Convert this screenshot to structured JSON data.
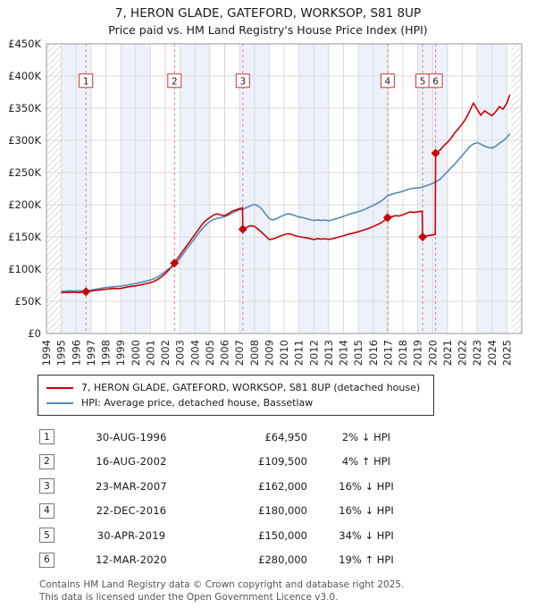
{
  "title": "7, HERON GLADE, GATEFORD, WORKSOP, S81 8UP",
  "subtitle": "Price paid vs. HM Land Registry's House Price Index (HPI)",
  "chart_data": {
    "type": "line",
    "x_min": 1994,
    "x_max": 2026,
    "ylim": [
      0,
      450000
    ],
    "y_tick_step": 50000,
    "y_ticks": [
      "£0",
      "£50K",
      "£100K",
      "£150K",
      "£200K",
      "£250K",
      "£300K",
      "£350K",
      "£400K",
      "£450K"
    ],
    "x_ticks": [
      1994,
      1995,
      1996,
      1997,
      1998,
      1999,
      2000,
      2001,
      2002,
      2003,
      2004,
      2005,
      2006,
      2007,
      2008,
      2009,
      2010,
      2011,
      2012,
      2013,
      2014,
      2015,
      2016,
      2017,
      2018,
      2019,
      2020,
      2021,
      2022,
      2023,
      2024,
      2025
    ],
    "grid": true,
    "legend_position": "below",
    "band_color": "#edf2fa",
    "grid_color": "#d9d9d9",
    "sale_line_color": "#e87c7c",
    "marker_color": "#cc0000",
    "box_stroke": "#cc3333",
    "label_y": 392000,
    "bands": [
      [
        1995,
        1997
      ],
      [
        1999,
        2001
      ],
      [
        2003,
        2005
      ],
      [
        2007,
        2009
      ],
      [
        2011,
        2013
      ],
      [
        2015,
        2017
      ],
      [
        2019,
        2021
      ],
      [
        2023,
        2025
      ]
    ],
    "hatch_regions": [
      [
        1994,
        1995
      ],
      [
        2025.3,
        2026
      ]
    ],
    "series": [
      {
        "name": "7, HERON GLADE, GATEFORD, WORKSOP, S81 8UP (detached house)",
        "color": "#cc0000",
        "width": 1.6,
        "points": [
          [
            1995,
            63500
          ],
          [
            1995.25,
            64200
          ],
          [
            1995.5,
            63800
          ],
          [
            1995.75,
            64300
          ],
          [
            1996,
            64000
          ],
          [
            1996.25,
            63600
          ],
          [
            1996.5,
            64400
          ],
          [
            1996.66,
            64950
          ],
          [
            1997,
            66000
          ],
          [
            1997.25,
            67000
          ],
          [
            1997.5,
            67500
          ],
          [
            1997.75,
            68200
          ],
          [
            1998,
            68800
          ],
          [
            1998.25,
            69500
          ],
          [
            1998.5,
            70000
          ],
          [
            1998.75,
            69700
          ],
          [
            1999,
            70000
          ],
          [
            1999.25,
            71200
          ],
          [
            1999.5,
            72500
          ],
          [
            1999.75,
            73200
          ],
          [
            2000,
            74000
          ],
          [
            2000.25,
            75200
          ],
          [
            2000.5,
            76200
          ],
          [
            2000.75,
            77600
          ],
          [
            2001,
            79000
          ],
          [
            2001.25,
            81000
          ],
          [
            2001.5,
            84000
          ],
          [
            2001.75,
            88000
          ],
          [
            2002,
            93000
          ],
          [
            2002.25,
            99000
          ],
          [
            2002.62,
            109500
          ],
          [
            2003,
            122000
          ],
          [
            2003.25,
            130000
          ],
          [
            2003.5,
            138000
          ],
          [
            2003.75,
            146000
          ],
          [
            2004,
            154000
          ],
          [
            2004.25,
            162000
          ],
          [
            2004.5,
            170000
          ],
          [
            2004.75,
            176000
          ],
          [
            2005,
            180000
          ],
          [
            2005.25,
            184000
          ],
          [
            2005.5,
            186000
          ],
          [
            2005.75,
            184000
          ],
          [
            2006,
            183000
          ],
          [
            2006.25,
            186000
          ],
          [
            2006.5,
            190000
          ],
          [
            2006.75,
            192000
          ],
          [
            2007,
            194000
          ],
          [
            2007.2,
            195000
          ],
          [
            2007.22,
            162000
          ],
          [
            2007.5,
            165000
          ],
          [
            2007.75,
            167500
          ],
          [
            2008,
            166500
          ],
          [
            2008.25,
            162000
          ],
          [
            2008.5,
            157000
          ],
          [
            2008.75,
            151500
          ],
          [
            2009,
            146000
          ],
          [
            2009.25,
            147000
          ],
          [
            2009.5,
            149000
          ],
          [
            2009.75,
            151500
          ],
          [
            2010,
            153500
          ],
          [
            2010.25,
            155000
          ],
          [
            2010.5,
            154000
          ],
          [
            2010.75,
            152000
          ],
          [
            2011,
            150500
          ],
          [
            2011.25,
            149500
          ],
          [
            2011.5,
            148500
          ],
          [
            2011.75,
            147500
          ],
          [
            2012,
            146000
          ],
          [
            2012.25,
            147500
          ],
          [
            2012.5,
            146500
          ],
          [
            2012.75,
            147200
          ],
          [
            2013,
            146200
          ],
          [
            2013.25,
            147200
          ],
          [
            2013.5,
            148800
          ],
          [
            2013.75,
            150200
          ],
          [
            2014,
            152000
          ],
          [
            2014.25,
            153800
          ],
          [
            2014.5,
            155200
          ],
          [
            2014.75,
            156500
          ],
          [
            2015,
            158000
          ],
          [
            2015.25,
            159800
          ],
          [
            2015.5,
            161800
          ],
          [
            2015.75,
            163800
          ],
          [
            2016,
            166200
          ],
          [
            2016.25,
            168800
          ],
          [
            2016.5,
            171500
          ],
          [
            2016.75,
            175500
          ],
          [
            2016.97,
            180000
          ],
          [
            2017.25,
            181500
          ],
          [
            2017.5,
            183000
          ],
          [
            2017.75,
            182500
          ],
          [
            2018,
            184500
          ],
          [
            2018.25,
            186800
          ],
          [
            2018.5,
            189000
          ],
          [
            2018.75,
            188000
          ],
          [
            2019,
            189000
          ],
          [
            2019.3,
            190000
          ],
          [
            2019.33,
            150000
          ],
          [
            2019.5,
            151000
          ],
          [
            2019.75,
            152200
          ],
          [
            2020,
            153200
          ],
          [
            2020.18,
            153800
          ],
          [
            2020.2,
            280000
          ],
          [
            2020.5,
            285000
          ],
          [
            2020.75,
            291500
          ],
          [
            2021,
            297000
          ],
          [
            2021.25,
            303500
          ],
          [
            2021.5,
            312000
          ],
          [
            2021.75,
            318500
          ],
          [
            2022,
            325500
          ],
          [
            2022.25,
            334500
          ],
          [
            2022.5,
            345500
          ],
          [
            2022.75,
            358000
          ],
          [
            2023,
            348000
          ],
          [
            2023.25,
            339000
          ],
          [
            2023.5,
            346000
          ],
          [
            2023.75,
            342000
          ],
          [
            2024,
            338500
          ],
          [
            2024.25,
            344500
          ],
          [
            2024.5,
            352500
          ],
          [
            2024.75,
            348500
          ],
          [
            2025,
            358000
          ],
          [
            2025.2,
            371000
          ]
        ]
      },
      {
        "name": "HPI: Average price, detached house, Bassetlaw",
        "color": "#5588bb",
        "width": 1.6,
        "points": [
          [
            1995,
            66000
          ],
          [
            1995.25,
            65600
          ],
          [
            1995.5,
            66400
          ],
          [
            1995.75,
            66100
          ],
          [
            1996,
            66000
          ],
          [
            1996.25,
            66400
          ],
          [
            1996.5,
            66200
          ],
          [
            1996.66,
            66300
          ],
          [
            1997,
            67500
          ],
          [
            1997.25,
            68500
          ],
          [
            1997.5,
            69500
          ],
          [
            1997.75,
            70500
          ],
          [
            1998,
            71500
          ],
          [
            1998.25,
            72000
          ],
          [
            1998.5,
            72600
          ],
          [
            1998.75,
            73000
          ],
          [
            1999,
            73600
          ],
          [
            1999.25,
            74500
          ],
          [
            1999.5,
            75500
          ],
          [
            1999.75,
            76500
          ],
          [
            2000,
            77600
          ],
          [
            2000.25,
            79000
          ],
          [
            2000.5,
            80200
          ],
          [
            2000.75,
            81500
          ],
          [
            2001,
            83200
          ],
          [
            2001.25,
            85200
          ],
          [
            2001.5,
            88000
          ],
          [
            2001.75,
            92000
          ],
          [
            2002,
            96200
          ],
          [
            2002.25,
            101000
          ],
          [
            2002.62,
            105300
          ],
          [
            2003,
            117000
          ],
          [
            2003.25,
            125000
          ],
          [
            2003.5,
            133000
          ],
          [
            2003.75,
            140500
          ],
          [
            2004,
            148000
          ],
          [
            2004.25,
            156000
          ],
          [
            2004.5,
            163000
          ],
          [
            2004.75,
            169000
          ],
          [
            2005,
            174000
          ],
          [
            2005.25,
            177000
          ],
          [
            2005.5,
            179000
          ],
          [
            2005.75,
            180000
          ],
          [
            2006,
            181500
          ],
          [
            2006.25,
            184000
          ],
          [
            2006.5,
            187000
          ],
          [
            2006.75,
            190000
          ],
          [
            2007,
            192000
          ],
          [
            2007.22,
            192900
          ],
          [
            2007.5,
            196000
          ],
          [
            2007.75,
            198500
          ],
          [
            2008,
            200500
          ],
          [
            2008.25,
            198500
          ],
          [
            2008.5,
            193000
          ],
          [
            2008.75,
            186000
          ],
          [
            2009,
            178500
          ],
          [
            2009.25,
            176500
          ],
          [
            2009.5,
            178500
          ],
          [
            2009.75,
            181500
          ],
          [
            2010,
            184000
          ],
          [
            2010.25,
            186000
          ],
          [
            2010.5,
            185000
          ],
          [
            2010.75,
            183000
          ],
          [
            2011,
            181000
          ],
          [
            2011.25,
            180000
          ],
          [
            2011.5,
            178500
          ],
          [
            2011.75,
            177000
          ],
          [
            2012,
            175500
          ],
          [
            2012.25,
            176500
          ],
          [
            2012.5,
            175500
          ],
          [
            2012.75,
            176200
          ],
          [
            2013,
            175200
          ],
          [
            2013.25,
            176500
          ],
          [
            2013.5,
            178200
          ],
          [
            2013.75,
            180000
          ],
          [
            2014,
            182000
          ],
          [
            2014.25,
            184200
          ],
          [
            2014.5,
            186000
          ],
          [
            2014.75,
            187800
          ],
          [
            2015,
            189200
          ],
          [
            2015.25,
            191200
          ],
          [
            2015.5,
            193500
          ],
          [
            2015.75,
            196200
          ],
          [
            2016,
            199000
          ],
          [
            2016.25,
            202000
          ],
          [
            2016.5,
            205200
          ],
          [
            2016.75,
            209500
          ],
          [
            2016.97,
            214300
          ],
          [
            2017.25,
            216200
          ],
          [
            2017.5,
            218000
          ],
          [
            2017.75,
            219200
          ],
          [
            2018,
            221000
          ],
          [
            2018.25,
            223000
          ],
          [
            2018.5,
            225000
          ],
          [
            2018.75,
            225600
          ],
          [
            2019,
            226200
          ],
          [
            2019.33,
            227300
          ],
          [
            2019.5,
            229000
          ],
          [
            2019.75,
            231000
          ],
          [
            2020,
            233200
          ],
          [
            2020.2,
            235300
          ],
          [
            2020.5,
            239500
          ],
          [
            2020.75,
            245500
          ],
          [
            2021,
            251500
          ],
          [
            2021.25,
            257500
          ],
          [
            2021.5,
            263500
          ],
          [
            2021.75,
            270000
          ],
          [
            2022,
            276500
          ],
          [
            2022.25,
            283500
          ],
          [
            2022.5,
            290500
          ],
          [
            2022.75,
            294500
          ],
          [
            2023,
            296500
          ],
          [
            2023.25,
            294000
          ],
          [
            2023.5,
            291000
          ],
          [
            2023.75,
            289000
          ],
          [
            2024,
            288000
          ],
          [
            2024.25,
            291000
          ],
          [
            2024.5,
            295500
          ],
          [
            2024.75,
            299500
          ],
          [
            2025,
            304500
          ],
          [
            2025.2,
            310500
          ]
        ]
      }
    ],
    "sales": [
      {
        "num": "1",
        "x": 1996.66,
        "price": 64950
      },
      {
        "num": "2",
        "x": 2002.62,
        "price": 109500
      },
      {
        "num": "3",
        "x": 2007.22,
        "price": 162000
      },
      {
        "num": "4",
        "x": 2016.97,
        "price": 180000
      },
      {
        "num": "5",
        "x": 2019.33,
        "price": 150000
      },
      {
        "num": "6",
        "x": 2020.2,
        "price": 280000
      }
    ]
  },
  "legend": {
    "items": [
      {
        "label": "7, HERON GLADE, GATEFORD, WORKSOP, S81 8UP (detached house)",
        "color": "#cc0000"
      },
      {
        "label": "HPI: Average price, detached house, Bassetlaw",
        "color": "#5588bb"
      }
    ]
  },
  "table": {
    "rows": [
      {
        "num": "1",
        "date": "30-AUG-1996",
        "price": "£64,950",
        "hpi": "2% ↓ HPI"
      },
      {
        "num": "2",
        "date": "16-AUG-2002",
        "price": "£109,500",
        "hpi": "4% ↑ HPI"
      },
      {
        "num": "3",
        "date": "23-MAR-2007",
        "price": "£162,000",
        "hpi": "16% ↓ HPI"
      },
      {
        "num": "4",
        "date": "22-DEC-2016",
        "price": "£180,000",
        "hpi": "16% ↓ HPI"
      },
      {
        "num": "5",
        "date": "30-APR-2019",
        "price": "£150,000",
        "hpi": "34% ↓ HPI"
      },
      {
        "num": "6",
        "date": "12-MAR-2020",
        "price": "£280,000",
        "hpi": "19% ↑ HPI"
      }
    ]
  },
  "footer": {
    "line1": "Contains HM Land Registry data © Crown copyright and database right 2025.",
    "line2": "This data is licensed under the Open Government Licence v3.0."
  }
}
